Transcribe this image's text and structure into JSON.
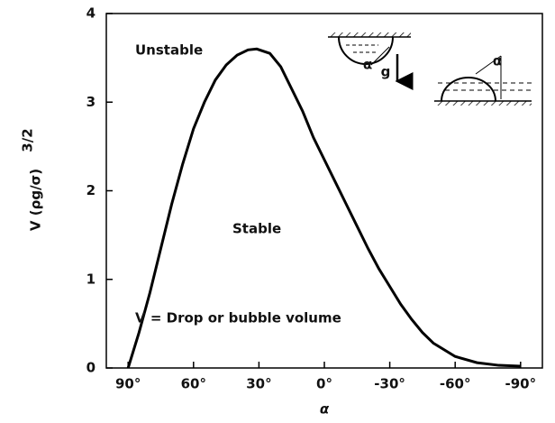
{
  "chart_data": {
    "type": "line",
    "xlabel": "α",
    "ylabel": "V (ρg/σ)",
    "ylabel_exponent": "3/2",
    "x": [
      90,
      85,
      80,
      75,
      70,
      65,
      60,
      55,
      50,
      45,
      40,
      35,
      31,
      25,
      20,
      15,
      10,
      5,
      0,
      -5,
      -10,
      -15,
      -20,
      -25,
      -30,
      -35,
      -40,
      -45,
      -50,
      -60,
      -70,
      -80,
      -90
    ],
    "series": [
      {
        "color": "#000000",
        "values": [
          0,
          0.4,
          0.85,
          1.35,
          1.85,
          2.3,
          2.7,
          3.0,
          3.25,
          3.42,
          3.53,
          3.59,
          3.6,
          3.55,
          3.4,
          3.15,
          2.9,
          2.6,
          2.35,
          2.1,
          1.85,
          1.6,
          1.35,
          1.12,
          0.92,
          0.72,
          0.55,
          0.4,
          0.28,
          0.13,
          0.06,
          0.03,
          0.02
        ]
      }
    ],
    "xlim": [
      100,
      -100
    ],
    "ylim": [
      0,
      4
    ],
    "xticks": [
      {
        "value": 90,
        "label": "90°"
      },
      {
        "value": 60,
        "label": "60°"
      },
      {
        "value": 30,
        "label": "30°"
      },
      {
        "value": 0,
        "label": "0°"
      },
      {
        "value": -30,
        "label": "-30°"
      },
      {
        "value": -60,
        "label": "-60°"
      },
      {
        "value": -90,
        "label": "-90°"
      }
    ],
    "yticks": [
      0,
      1,
      2,
      3,
      4
    ],
    "annotations": [
      "Unstable",
      "Stable",
      "V = Drop or bubble volume",
      "α",
      "g",
      "α"
    ]
  }
}
